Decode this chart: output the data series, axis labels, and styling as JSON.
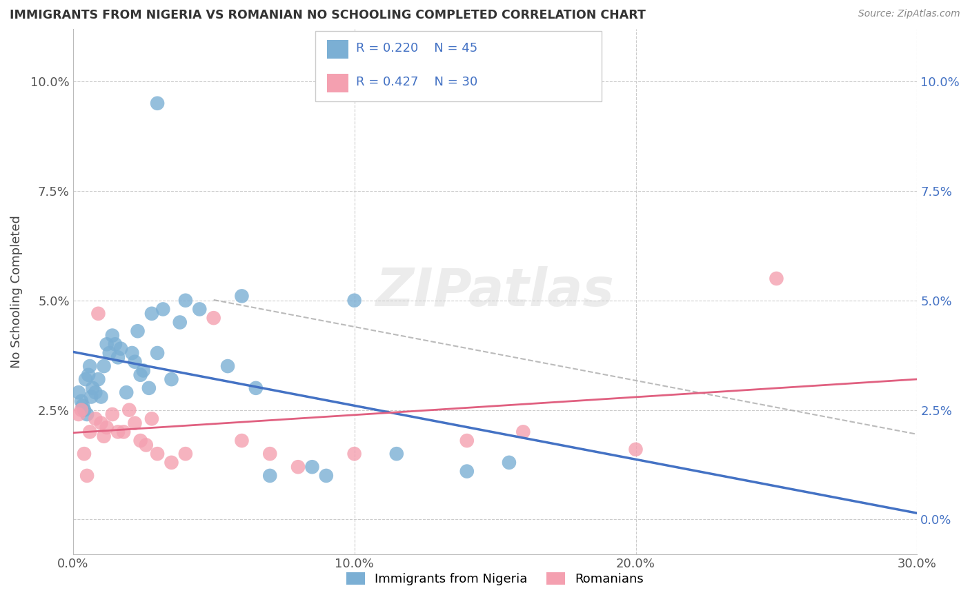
{
  "title": "IMMIGRANTS FROM NIGERIA VS ROMANIAN NO SCHOOLING COMPLETED CORRELATION CHART",
  "source": "Source: ZipAtlas.com",
  "xlim": [
    0.0,
    30.0
  ],
  "ylim": [
    -0.8,
    11.2
  ],
  "ylabel": "No Schooling Completed",
  "legend_label1": "Immigrants from Nigeria",
  "legend_label2": "Romanians",
  "legend_r1": "R = 0.220",
  "legend_n1": "N = 45",
  "legend_r2": "R = 0.427",
  "legend_n2": "N = 30",
  "color_blue": "#7BAFD4",
  "color_pink": "#F4A0B0",
  "color_blue_line": "#4472C4",
  "color_pink_line": "#E06080",
  "color_dash": "#aaaaaa",
  "watermark": "ZIPatlas",
  "blue_x": [
    0.2,
    0.3,
    0.35,
    0.4,
    0.45,
    0.5,
    0.55,
    0.6,
    0.65,
    0.7,
    0.8,
    0.9,
    1.0,
    1.1,
    1.2,
    1.3,
    1.4,
    1.5,
    1.6,
    1.7,
    1.9,
    2.1,
    2.2,
    2.3,
    2.4,
    2.5,
    2.7,
    2.8,
    3.0,
    3.2,
    3.5,
    4.0,
    4.5,
    5.5,
    6.0,
    6.5,
    7.0,
    8.5,
    9.0,
    10.0,
    11.5,
    14.0,
    15.5,
    3.8,
    3.0
  ],
  "blue_y": [
    2.9,
    2.7,
    2.6,
    2.5,
    3.2,
    2.4,
    3.3,
    3.5,
    2.8,
    3.0,
    2.9,
    3.2,
    2.8,
    3.5,
    4.0,
    3.8,
    4.2,
    4.0,
    3.7,
    3.9,
    2.9,
    3.8,
    3.6,
    4.3,
    3.3,
    3.4,
    3.0,
    4.7,
    3.8,
    4.8,
    3.2,
    5.0,
    4.8,
    3.5,
    5.1,
    3.0,
    1.0,
    1.2,
    1.0,
    5.0,
    1.5,
    1.1,
    1.3,
    4.5,
    9.5
  ],
  "pink_x": [
    0.2,
    0.3,
    0.4,
    0.5,
    0.6,
    0.8,
    1.0,
    1.1,
    1.2,
    1.4,
    1.6,
    1.8,
    2.0,
    2.2,
    2.4,
    2.6,
    2.8,
    3.0,
    3.5,
    4.0,
    5.0,
    6.0,
    7.0,
    8.0,
    10.0,
    14.0,
    16.0,
    20.0,
    25.0,
    0.9
  ],
  "pink_y": [
    2.4,
    2.5,
    1.5,
    1.0,
    2.0,
    2.3,
    2.2,
    1.9,
    2.1,
    2.4,
    2.0,
    2.0,
    2.5,
    2.2,
    1.8,
    1.7,
    2.3,
    1.5,
    1.3,
    1.5,
    4.6,
    1.8,
    1.5,
    1.2,
    1.5,
    1.8,
    2.0,
    1.6,
    5.5,
    4.7
  ],
  "xtick_vals": [
    0,
    10,
    20,
    30
  ],
  "xtick_labels": [
    "0.0%",
    "10.0%",
    "20.0%",
    "30.0%"
  ],
  "ytick_vals": [
    0,
    2.5,
    5.0,
    7.5,
    10.0
  ],
  "ytick_labels": [
    "0.0%",
    "2.5%",
    "5.0%",
    "7.5%",
    "10.0%"
  ]
}
